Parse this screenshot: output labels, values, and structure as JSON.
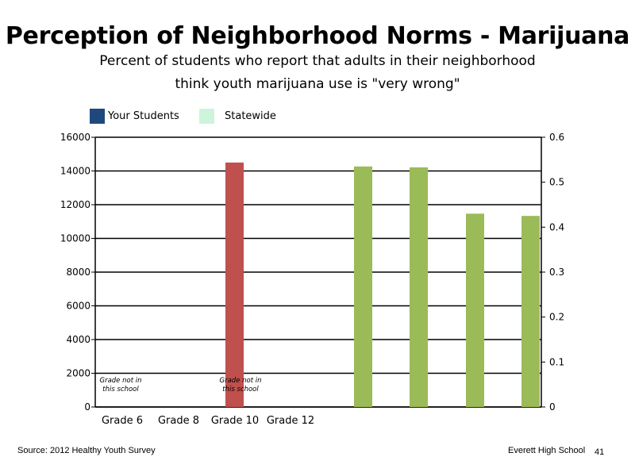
{
  "title": "Perception of Neighborhood Norms - Marijuana",
  "subtitle_line1": "Percent of students who report that adults in their neighborhood",
  "subtitle_line2": "think youth marijuana use is \"very wrong\"",
  "legend": [
    {
      "name": "Your Students",
      "color": "#1f497d"
    },
    {
      "name": "Statewide",
      "color": "#ccf5dc"
    }
  ],
  "footer": {
    "source": "Source: 2012 Healthy Youth Survey",
    "school": "Everett High School",
    "page": "41"
  },
  "chart_data": {
    "type": "bar",
    "left_axis": {
      "min": 0,
      "max": 16000,
      "ticks": [
        "0",
        "2000",
        "4000",
        "6000",
        "8000",
        "10000",
        "12000",
        "14000",
        "16000"
      ]
    },
    "right_axis": {
      "min": 0,
      "max": 0.6,
      "ticks": [
        "0",
        "0.1",
        "0.2",
        "0.3",
        "0.4",
        "0.5",
        "0.6"
      ]
    },
    "categories": [
      "Grade 6",
      "Grade 8",
      "Grade 10",
      "Grade 12"
    ],
    "bars": [
      {
        "value": 14500,
        "axis": "left",
        "color": "#c0504d"
      },
      {
        "value": 0.535,
        "axis": "right",
        "color": "#9bbb59"
      },
      {
        "value": 0.533,
        "axis": "right",
        "color": "#9bbb59"
      },
      {
        "value": 0.43,
        "axis": "right",
        "color": "#9bbb59"
      },
      {
        "value": 0.425,
        "axis": "right",
        "color": "#9bbb59"
      }
    ],
    "annotations": [
      {
        "lines": [
          "Grade not in",
          "this school"
        ],
        "category": "Grade 6"
      },
      {
        "lines": [
          "Grade not in",
          "this school"
        ],
        "category": "Grade 10"
      }
    ],
    "grid": true,
    "legend_position": "top-left"
  }
}
